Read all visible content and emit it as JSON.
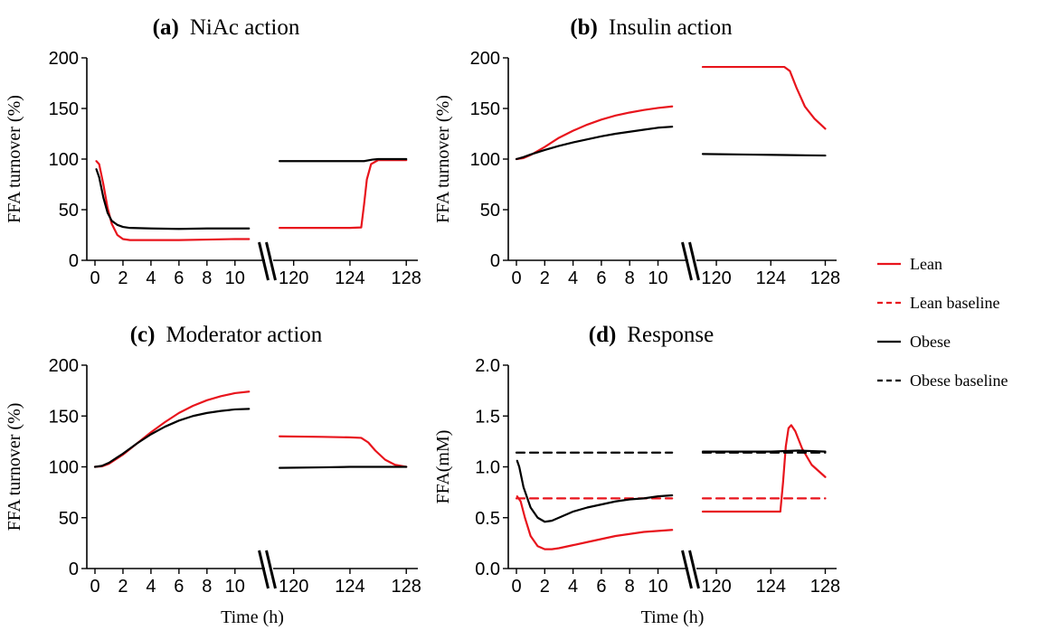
{
  "colors": {
    "lean": "#e8141c",
    "obese": "#000000"
  },
  "legend": {
    "placement": "right",
    "items": [
      {
        "label": "Lean",
        "color": "#e8141c",
        "dash": "solid"
      },
      {
        "label": "Lean baseline",
        "color": "#e8141c",
        "dash": "dashed"
      },
      {
        "label": "Obese",
        "color": "#000000",
        "dash": "solid"
      },
      {
        "label": "Obese baseline",
        "color": "#000000",
        "dash": "dashed"
      }
    ]
  },
  "chart_data": [
    {
      "type": "line",
      "letter": "(a)",
      "title": "NiAc action",
      "ylabel": "FFA turnover (%)",
      "xlabel": "",
      "ylim": [
        0,
        200
      ],
      "yticks": [
        "0",
        "50",
        "100",
        "150",
        "200"
      ],
      "xlim_left": [
        0,
        11.5
      ],
      "xlim_right": [
        118.8,
        128.5
      ],
      "xticks_left": [
        "0",
        "2",
        "4",
        "6",
        "8",
        "10"
      ],
      "xticks_right": [
        "120",
        "124",
        "128"
      ],
      "axis_break": true,
      "series": [
        {
          "name": "Lean",
          "dash": "solid",
          "color": "#e8141c",
          "left": [
            [
              0.1,
              98
            ],
            [
              0.3,
              95
            ],
            [
              0.6,
              75
            ],
            [
              0.9,
              52
            ],
            [
              1.2,
              36
            ],
            [
              1.6,
              25
            ],
            [
              2,
              21
            ],
            [
              2.5,
              20
            ],
            [
              4,
              20
            ],
            [
              6,
              20
            ],
            [
              8,
              20.5
            ],
            [
              10,
              21
            ],
            [
              11,
              21
            ]
          ],
          "right": [
            [
              119,
              32
            ],
            [
              122,
              32
            ],
            [
              124,
              32
            ],
            [
              124.8,
              32.5
            ],
            [
              125,
              55
            ],
            [
              125.2,
              80
            ],
            [
              125.5,
              95
            ],
            [
              126,
              99
            ],
            [
              128,
              99
            ]
          ]
        },
        {
          "name": "Obese",
          "dash": "solid",
          "color": "#000000",
          "left": [
            [
              0.1,
              90
            ],
            [
              0.3,
              82
            ],
            [
              0.6,
              62
            ],
            [
              0.9,
              47
            ],
            [
              1.2,
              39
            ],
            [
              1.6,
              35
            ],
            [
              2,
              33
            ],
            [
              2.5,
              32
            ],
            [
              4,
              31.5
            ],
            [
              6,
              31
            ],
            [
              8,
              31.5
            ],
            [
              10,
              31.5
            ],
            [
              11,
              31.5
            ]
          ],
          "right": [
            [
              119,
              98
            ],
            [
              122,
              98
            ],
            [
              124,
              98
            ],
            [
              125,
              98
            ],
            [
              125.6,
              99.5
            ],
            [
              126,
              100
            ],
            [
              128,
              100
            ]
          ]
        }
      ]
    },
    {
      "type": "line",
      "letter": "(b)",
      "title": "Insulin action",
      "ylabel": "FFA turnover (%)",
      "xlabel": "",
      "ylim": [
        0,
        200
      ],
      "yticks": [
        "0",
        "50",
        "100",
        "150",
        "200"
      ],
      "xlim_left": [
        0,
        11.5
      ],
      "xlim_right": [
        118.8,
        128.5
      ],
      "xticks_left": [
        "0",
        "2",
        "4",
        "6",
        "8",
        "10"
      ],
      "xticks_right": [
        "120",
        "124",
        "128"
      ],
      "axis_break": true,
      "series": [
        {
          "name": "Lean",
          "dash": "solid",
          "color": "#e8141c",
          "left": [
            [
              0,
              100
            ],
            [
              0.5,
              101
            ],
            [
              1,
              104
            ],
            [
              2,
              112
            ],
            [
              3,
              121
            ],
            [
              4,
              128
            ],
            [
              5,
              134
            ],
            [
              6,
              139
            ],
            [
              7,
              143
            ],
            [
              8,
              146
            ],
            [
              9,
              148.5
            ],
            [
              10,
              150.5
            ],
            [
              11,
              152
            ]
          ],
          "right": [
            [
              119,
              191
            ],
            [
              122,
              191
            ],
            [
              124,
              191
            ],
            [
              125,
              191
            ],
            [
              125.4,
              187
            ],
            [
              125.9,
              170
            ],
            [
              126.5,
              152
            ],
            [
              127.2,
              140
            ],
            [
              128,
              130
            ]
          ]
        },
        {
          "name": "Obese",
          "dash": "solid",
          "color": "#000000",
          "left": [
            [
              0,
              100
            ],
            [
              0.5,
              102
            ],
            [
              1,
              104.5
            ],
            [
              2,
              109
            ],
            [
              3,
              113
            ],
            [
              4,
              116.5
            ],
            [
              5,
              119.5
            ],
            [
              6,
              122.5
            ],
            [
              7,
              125
            ],
            [
              8,
              127
            ],
            [
              9,
              129
            ],
            [
              10,
              131
            ],
            [
              11,
              132
            ]
          ],
          "right": [
            [
              119,
              105
            ],
            [
              122,
              104.5
            ],
            [
              125,
              104
            ],
            [
              128,
              103.5
            ]
          ]
        }
      ]
    },
    {
      "type": "line",
      "letter": "(c)",
      "title": "Moderator action",
      "ylabel": "FFA turnover (%)",
      "xlabel": "Time (h)",
      "ylim": [
        0,
        200
      ],
      "yticks": [
        "0",
        "50",
        "100",
        "150",
        "200"
      ],
      "xlim_left": [
        0,
        11.5
      ],
      "xlim_right": [
        118.8,
        128.5
      ],
      "xticks_left": [
        "0",
        "2",
        "4",
        "6",
        "8",
        "10"
      ],
      "xticks_right": [
        "120",
        "124",
        "128"
      ],
      "axis_break": true,
      "series": [
        {
          "name": "Lean",
          "dash": "solid",
          "color": "#e8141c",
          "left": [
            [
              0,
              100
            ],
            [
              0.5,
              100.5
            ],
            [
              1,
              103
            ],
            [
              2,
              112
            ],
            [
              3,
              123
            ],
            [
              4,
              134
            ],
            [
              5,
              144
            ],
            [
              6,
              153
            ],
            [
              7,
              160
            ],
            [
              8,
              165.5
            ],
            [
              9,
              169.5
            ],
            [
              10,
              172.5
            ],
            [
              11,
              174
            ]
          ],
          "right": [
            [
              119,
              130
            ],
            [
              122,
              129.5
            ],
            [
              124,
              129
            ],
            [
              124.8,
              128.5
            ],
            [
              125.3,
              124
            ],
            [
              125.8,
              116
            ],
            [
              126.5,
              107
            ],
            [
              127.2,
              102
            ],
            [
              128,
              100
            ]
          ]
        },
        {
          "name": "Obese",
          "dash": "solid",
          "color": "#000000",
          "left": [
            [
              0,
              100
            ],
            [
              0.5,
              101
            ],
            [
              1,
              104
            ],
            [
              2,
              113
            ],
            [
              3,
              123
            ],
            [
              4,
              132
            ],
            [
              5,
              139.5
            ],
            [
              6,
              145.5
            ],
            [
              7,
              150
            ],
            [
              8,
              153
            ],
            [
              9,
              155
            ],
            [
              10,
              156.5
            ],
            [
              11,
              157
            ]
          ],
          "right": [
            [
              119,
              99
            ],
            [
              122,
              99.5
            ],
            [
              124,
              100
            ],
            [
              126,
              100
            ],
            [
              128,
              100
            ]
          ]
        }
      ]
    },
    {
      "type": "line",
      "letter": "(d)",
      "title": "Response",
      "ylabel": "FFA(mM)",
      "xlabel": "Time (h)",
      "ylim": [
        0,
        2
      ],
      "yticks": [
        "0.0",
        "0.5",
        "1.0",
        "1.5",
        "2.0"
      ],
      "xlim_left": [
        0,
        11.5
      ],
      "xlim_right": [
        118.8,
        128.5
      ],
      "xticks_left": [
        "0",
        "2",
        "4",
        "6",
        "8",
        "10"
      ],
      "xticks_right": [
        "120",
        "124",
        "128"
      ],
      "axis_break": true,
      "series": [
        {
          "name": "Lean",
          "dash": "solid",
          "color": "#e8141c",
          "left": [
            [
              0.05,
              0.71
            ],
            [
              0.3,
              0.66
            ],
            [
              0.6,
              0.5
            ],
            [
              1,
              0.32
            ],
            [
              1.5,
              0.22
            ],
            [
              2,
              0.19
            ],
            [
              2.5,
              0.19
            ],
            [
              3,
              0.2
            ],
            [
              4,
              0.23
            ],
            [
              5,
              0.26
            ],
            [
              6,
              0.29
            ],
            [
              7,
              0.32
            ],
            [
              8,
              0.34
            ],
            [
              9,
              0.36
            ],
            [
              10,
              0.37
            ],
            [
              11,
              0.38
            ]
          ],
          "right": [
            [
              119,
              0.56
            ],
            [
              122,
              0.56
            ],
            [
              124,
              0.56
            ],
            [
              124.7,
              0.56
            ],
            [
              124.9,
              0.85
            ],
            [
              125.1,
              1.2
            ],
            [
              125.3,
              1.38
            ],
            [
              125.5,
              1.41
            ],
            [
              125.8,
              1.35
            ],
            [
              126.3,
              1.18
            ],
            [
              127,
              1.02
            ],
            [
              128,
              0.9
            ]
          ]
        },
        {
          "name": "Lean baseline",
          "dash": "dashed",
          "color": "#e8141c",
          "left": [
            [
              0,
              0.69
            ],
            [
              11,
              0.69
            ]
          ],
          "right": [
            [
              119,
              0.69
            ],
            [
              128,
              0.69
            ]
          ]
        },
        {
          "name": "Obese",
          "dash": "solid",
          "color": "#000000",
          "left": [
            [
              0.05,
              1.06
            ],
            [
              0.2,
              1.0
            ],
            [
              0.5,
              0.8
            ],
            [
              1,
              0.6
            ],
            [
              1.5,
              0.5
            ],
            [
              2,
              0.46
            ],
            [
              2.5,
              0.47
            ],
            [
              3,
              0.5
            ],
            [
              4,
              0.56
            ],
            [
              5,
              0.6
            ],
            [
              6,
              0.63
            ],
            [
              7,
              0.66
            ],
            [
              8,
              0.68
            ],
            [
              9,
              0.69
            ],
            [
              10,
              0.71
            ],
            [
              11,
              0.72
            ]
          ],
          "right": [
            [
              119,
              1.15
            ],
            [
              122,
              1.15
            ],
            [
              124,
              1.15
            ],
            [
              126,
              1.16
            ],
            [
              128,
              1.15
            ]
          ]
        },
        {
          "name": "Obese baseline",
          "dash": "dashed",
          "color": "#000000",
          "left": [
            [
              0,
              1.14
            ],
            [
              11,
              1.14
            ]
          ],
          "right": [
            [
              119,
              1.14
            ],
            [
              128,
              1.14
            ]
          ]
        }
      ]
    }
  ]
}
